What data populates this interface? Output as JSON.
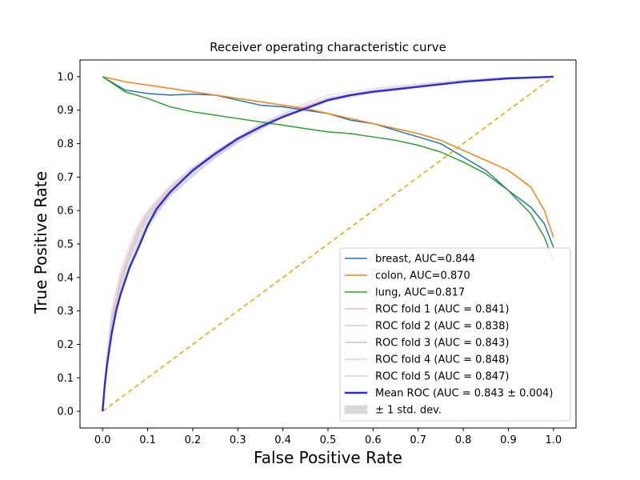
{
  "chart_data": {
    "type": "line",
    "title": "Receiver operating characteristic curve",
    "xlabel": "False Positive Rate",
    "ylabel": "True Positive Rate",
    "xlim": [
      -0.05,
      1.05
    ],
    "ylim": [
      -0.05,
      1.05
    ],
    "x_ticks": [
      "0.0",
      "0.1",
      "0.2",
      "0.3",
      "0.4",
      "0.5",
      "0.6",
      "0.7",
      "0.8",
      "0.9",
      "1.0"
    ],
    "y_ticks": [
      "0.0",
      "0.1",
      "0.2",
      "0.3",
      "0.4",
      "0.5",
      "0.6",
      "0.7",
      "0.8",
      "0.9",
      "1.0"
    ],
    "grid": false,
    "legend_position": "lower-right",
    "series": [
      {
        "name": "breast, AUC=0.844",
        "color": "#1f77b4",
        "width": 1.5,
        "opacity": 1,
        "x": [
          0,
          0.05,
          0.1,
          0.15,
          0.2,
          0.25,
          0.3,
          0.35,
          0.4,
          0.45,
          0.5,
          0.55,
          0.6,
          0.65,
          0.7,
          0.75,
          0.8,
          0.85,
          0.9,
          0.95,
          0.98,
          1.0
        ],
        "y": [
          1.0,
          0.96,
          0.95,
          0.945,
          0.948,
          0.945,
          0.93,
          0.915,
          0.91,
          0.9,
          0.89,
          0.87,
          0.86,
          0.84,
          0.82,
          0.8,
          0.76,
          0.72,
          0.66,
          0.61,
          0.56,
          0.49
        ]
      },
      {
        "name": "colon, AUC=0.870",
        "color": "#ff7f0e",
        "width": 1.5,
        "opacity": 1,
        "x": [
          0,
          0.05,
          0.1,
          0.15,
          0.2,
          0.25,
          0.3,
          0.35,
          0.4,
          0.45,
          0.5,
          0.55,
          0.6,
          0.65,
          0.7,
          0.75,
          0.8,
          0.85,
          0.9,
          0.95,
          0.98,
          1.0
        ],
        "y": [
          1.0,
          0.985,
          0.975,
          0.965,
          0.955,
          0.945,
          0.935,
          0.925,
          0.915,
          0.905,
          0.89,
          0.875,
          0.86,
          0.845,
          0.83,
          0.81,
          0.78,
          0.75,
          0.72,
          0.67,
          0.6,
          0.52
        ]
      },
      {
        "name": "lung, AUC=0.817",
        "color": "#2ca02c",
        "width": 1.5,
        "opacity": 1,
        "x": [
          0,
          0.05,
          0.1,
          0.15,
          0.2,
          0.25,
          0.3,
          0.35,
          0.4,
          0.45,
          0.5,
          0.55,
          0.6,
          0.65,
          0.7,
          0.75,
          0.8,
          0.85,
          0.9,
          0.95,
          0.98,
          1.0
        ],
        "y": [
          1.0,
          0.955,
          0.935,
          0.91,
          0.895,
          0.885,
          0.875,
          0.865,
          0.855,
          0.845,
          0.835,
          0.83,
          0.82,
          0.81,
          0.795,
          0.775,
          0.745,
          0.71,
          0.66,
          0.59,
          0.52,
          0.45
        ]
      },
      {
        "name": "ROC fold 1 (AUC = 0.841)",
        "color": "#f4b6b6",
        "width": 1,
        "opacity": 0.9,
        "x": [
          0,
          0.01,
          0.02,
          0.04,
          0.06,
          0.08,
          0.1,
          0.15,
          0.2,
          0.25,
          0.3,
          0.35,
          0.4,
          0.45,
          0.5,
          0.6,
          0.7,
          0.8,
          0.9,
          1.0
        ],
        "y": [
          0,
          0.16,
          0.28,
          0.4,
          0.48,
          0.55,
          0.59,
          0.665,
          0.72,
          0.77,
          0.81,
          0.85,
          0.88,
          0.91,
          0.93,
          0.955,
          0.97,
          0.985,
          0.995,
          1.0
        ]
      },
      {
        "name": "ROC fold 2 (AUC = 0.838)",
        "color": "#c8c8e8",
        "width": 1,
        "opacity": 0.9,
        "x": [
          0,
          0.01,
          0.02,
          0.04,
          0.06,
          0.08,
          0.1,
          0.15,
          0.2,
          0.25,
          0.3,
          0.35,
          0.4,
          0.45,
          0.5,
          0.6,
          0.7,
          0.8,
          0.9,
          1.0
        ],
        "y": [
          0,
          0.13,
          0.24,
          0.35,
          0.43,
          0.5,
          0.56,
          0.645,
          0.705,
          0.76,
          0.805,
          0.845,
          0.88,
          0.905,
          0.93,
          0.955,
          0.97,
          0.985,
          0.995,
          1.0
        ]
      },
      {
        "name": "ROC fold 3 (AUC = 0.843)",
        "color": "#d9b8c8",
        "width": 1,
        "opacity": 0.9,
        "x": [
          0,
          0.01,
          0.02,
          0.04,
          0.06,
          0.08,
          0.1,
          0.15,
          0.2,
          0.25,
          0.3,
          0.35,
          0.4,
          0.45,
          0.5,
          0.6,
          0.7,
          0.8,
          0.9,
          1.0
        ],
        "y": [
          0,
          0.14,
          0.26,
          0.38,
          0.46,
          0.53,
          0.58,
          0.66,
          0.715,
          0.765,
          0.81,
          0.85,
          0.88,
          0.91,
          0.935,
          0.955,
          0.97,
          0.985,
          0.995,
          1.0
        ]
      },
      {
        "name": "ROC fold 4 (AUC = 0.848)",
        "color": "#efc6e8",
        "width": 1,
        "opacity": 0.9,
        "x": [
          0,
          0.01,
          0.02,
          0.04,
          0.06,
          0.08,
          0.1,
          0.15,
          0.2,
          0.25,
          0.3,
          0.35,
          0.4,
          0.45,
          0.5,
          0.6,
          0.7,
          0.8,
          0.9,
          1.0
        ],
        "y": [
          0,
          0.17,
          0.3,
          0.42,
          0.5,
          0.56,
          0.6,
          0.675,
          0.73,
          0.775,
          0.815,
          0.855,
          0.885,
          0.915,
          0.935,
          0.96,
          0.975,
          0.99,
          0.998,
          1.0
        ]
      },
      {
        "name": "ROC fold 5 (AUC = 0.847)",
        "color": "#d0d0d0",
        "width": 1,
        "opacity": 0.9,
        "x": [
          0,
          0.01,
          0.02,
          0.04,
          0.06,
          0.08,
          0.1,
          0.15,
          0.2,
          0.25,
          0.3,
          0.35,
          0.4,
          0.45,
          0.5,
          0.6,
          0.7,
          0.8,
          0.9,
          1.0
        ],
        "y": [
          0,
          0.15,
          0.27,
          0.39,
          0.47,
          0.54,
          0.59,
          0.67,
          0.725,
          0.775,
          0.82,
          0.86,
          0.89,
          0.92,
          0.945,
          0.965,
          0.978,
          0.99,
          0.998,
          1.0
        ]
      },
      {
        "name": "Mean ROC (AUC = 0.843 ± 0.004)",
        "color": "#2b2bdb",
        "width": 2.4,
        "opacity": 1,
        "x": [
          0,
          0.005,
          0.01,
          0.02,
          0.03,
          0.04,
          0.05,
          0.06,
          0.08,
          0.1,
          0.12,
          0.15,
          0.2,
          0.25,
          0.3,
          0.35,
          0.4,
          0.45,
          0.5,
          0.55,
          0.6,
          0.7,
          0.8,
          0.9,
          1.0
        ],
        "y": [
          0,
          0.08,
          0.14,
          0.23,
          0.3,
          0.35,
          0.39,
          0.43,
          0.49,
          0.555,
          0.605,
          0.655,
          0.72,
          0.77,
          0.815,
          0.85,
          0.88,
          0.905,
          0.93,
          0.945,
          0.955,
          0.97,
          0.985,
          0.995,
          1.0
        ]
      },
      {
        "name": "chance",
        "color": "#ffa500",
        "width": 1.6,
        "opacity": 1,
        "dash": "6,4",
        "x": [
          0,
          1
        ],
        "y": [
          0,
          1
        ]
      }
    ],
    "std_band": {
      "name": "± 1 std. dev.",
      "color": "#bdbdbd",
      "x": [
        0,
        0.01,
        0.02,
        0.04,
        0.06,
        0.08,
        0.1,
        0.15,
        0.2,
        0.25,
        0.3,
        0.35,
        0.4,
        0.5,
        0.6,
        0.7,
        0.8,
        0.9,
        1.0
      ],
      "upper": [
        0,
        0.17,
        0.29,
        0.41,
        0.49,
        0.555,
        0.6,
        0.675,
        0.73,
        0.78,
        0.82,
        0.86,
        0.89,
        0.94,
        0.962,
        0.976,
        0.99,
        0.998,
        1.0
      ],
      "lower": [
        0,
        0.12,
        0.22,
        0.34,
        0.42,
        0.49,
        0.545,
        0.64,
        0.7,
        0.755,
        0.8,
        0.84,
        0.875,
        0.925,
        0.95,
        0.966,
        0.982,
        0.994,
        1.0
      ]
    },
    "legend": [
      {
        "label": "breast, AUC=0.844",
        "color": "#1f77b4",
        "kind": "line"
      },
      {
        "label": "colon, AUC=0.870",
        "color": "#ff7f0e",
        "kind": "line"
      },
      {
        "label": "lung, AUC=0.817",
        "color": "#2ca02c",
        "kind": "line"
      },
      {
        "label": "ROC fold 1 (AUC = 0.841)",
        "color": "#f4b6b6",
        "kind": "line"
      },
      {
        "label": "ROC fold 2 (AUC = 0.838)",
        "color": "#c8c8e8",
        "kind": "line"
      },
      {
        "label": "ROC fold 3 (AUC = 0.843)",
        "color": "#d9b8c8",
        "kind": "line"
      },
      {
        "label": "ROC fold 4 (AUC = 0.848)",
        "color": "#efc6e8",
        "kind": "line"
      },
      {
        "label": "ROC fold 5 (AUC = 0.847)",
        "color": "#d0d0d0",
        "kind": "line"
      },
      {
        "label": "Mean ROC (AUC = 0.843 ± 0.004)",
        "color": "#2b2bdb",
        "kind": "thickline"
      },
      {
        "label": "± 1 std. dev.",
        "color": "#d9d9d9",
        "kind": "patch"
      }
    ]
  }
}
